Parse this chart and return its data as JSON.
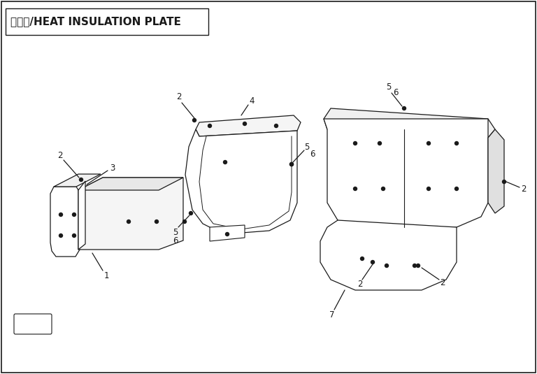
{
  "title": "隔热板/HEAT INSULATION PLATE",
  "background_color": "#ffffff",
  "border_color": "#1a1a1a",
  "text_color": "#1a1a1a",
  "title_fontsize": 11,
  "label_fontsize": 8.5,
  "fig_w": 7.68,
  "fig_h": 5.35,
  "dpi": 100
}
